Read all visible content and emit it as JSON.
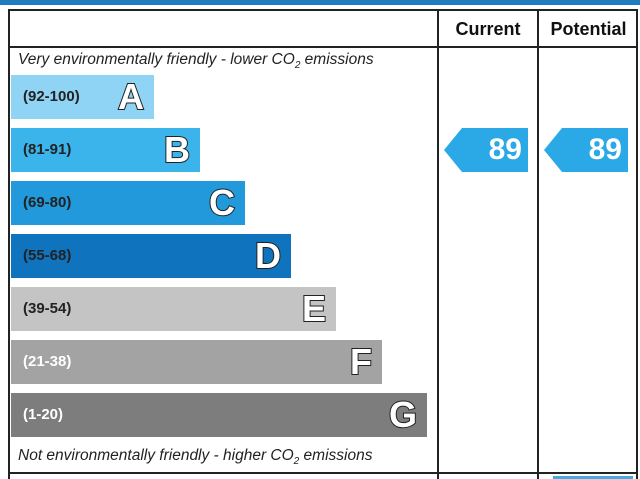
{
  "chart_data": {
    "type": "epc-rating",
    "columns": [
      "Current",
      "Potential"
    ],
    "caption_top": {
      "before": "Very environmentally friendly - lower CO",
      "sub": "2",
      "after": " emissions"
    },
    "caption_bottom": {
      "before": "Not environmentally friendly - higher CO",
      "sub": "2",
      "after": " emissions"
    },
    "bands": [
      {
        "letter": "A",
        "range": "(92-100)",
        "min": 92,
        "max": 100,
        "color": "#8fd3f5",
        "text_color": "#222222"
      },
      {
        "letter": "B",
        "range": "(81-91)",
        "min": 81,
        "max": 91,
        "color": "#3ab4ea",
        "text_color": "#222222"
      },
      {
        "letter": "C",
        "range": "(69-80)",
        "min": 69,
        "max": 80,
        "color": "#2299da",
        "text_color": "#222222"
      },
      {
        "letter": "D",
        "range": "(55-68)",
        "min": 55,
        "max": 68,
        "color": "#0f73be",
        "text_color": "#222222"
      },
      {
        "letter": "E",
        "range": "(39-54)",
        "min": 39,
        "max": 54,
        "color": "#c4c4c4",
        "text_color": "#222222"
      },
      {
        "letter": "F",
        "range": "(21-38)",
        "min": 21,
        "max": 38,
        "color": "#a3a3a3",
        "text_color": "#ffffff"
      },
      {
        "letter": "G",
        "range": "(1-20)",
        "min": 1,
        "max": 20,
        "color": "#7d7d7d",
        "text_color": "#ffffff"
      }
    ],
    "current": {
      "value": 89,
      "label": "89",
      "band": "B"
    },
    "potential": {
      "value": 89,
      "label": "89",
      "band": "B"
    },
    "rating_arrow_color": "#2ba9e6"
  }
}
